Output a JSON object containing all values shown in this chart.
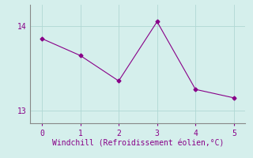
{
  "x": [
    0,
    1,
    2,
    3,
    4,
    5
  ],
  "y": [
    13.85,
    13.65,
    13.35,
    14.05,
    13.25,
    13.15
  ],
  "line_color": "#880088",
  "bg_color": "#d5efec",
  "grid_color": "#b0d8d4",
  "xlabel": "Windchill (Refroidissement éolien,°C)",
  "xlabel_color": "#880088",
  "tick_color": "#880088",
  "spine_color": "#888888",
  "ylim": [
    12.85,
    14.25
  ],
  "xlim": [
    -0.3,
    5.3
  ],
  "yticks": [
    13,
    14
  ],
  "xticks": [
    0,
    1,
    2,
    3,
    4,
    5
  ],
  "marker": "D",
  "markersize": 2.5,
  "linewidth": 0.8,
  "fontsize_label": 7,
  "fontsize_tick": 7
}
